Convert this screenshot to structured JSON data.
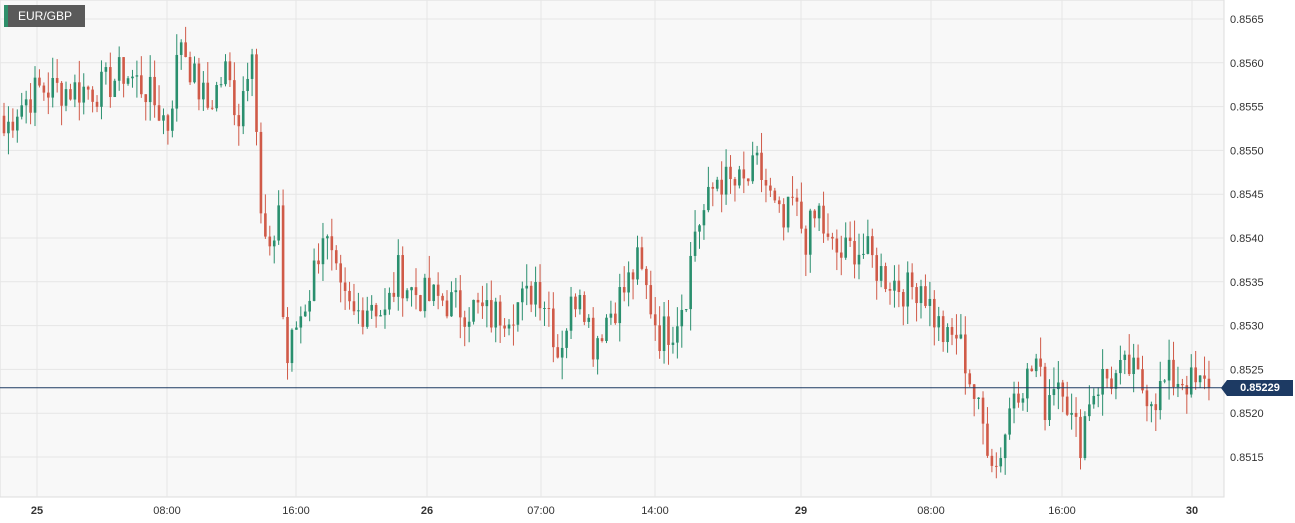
{
  "symbol": "EUR/GBP",
  "current_price": "0.85229",
  "colors": {
    "up": "#2a8f6e",
    "down": "#d05a48",
    "price_line": "#1d3a63",
    "grid": "#e6e6e6",
    "plot_bg": "#f8f8f8"
  },
  "chart_data": {
    "type": "candlestick",
    "title": "",
    "ylim": [
      0.851,
      0.8567
    ],
    "y_ticks": [
      "0.8565",
      "0.8560",
      "0.8555",
      "0.8550",
      "0.8545",
      "0.8540",
      "0.8535",
      "0.8530",
      "0.8525",
      "0.8520",
      "0.8515"
    ],
    "x_ticks": [
      {
        "label": "25",
        "bold": true
      },
      {
        "label": "08:00",
        "bold": false
      },
      {
        "label": "16:00",
        "bold": false
      },
      {
        "label": "26",
        "bold": true
      },
      {
        "label": "07:00",
        "bold": false
      },
      {
        "label": "14:00",
        "bold": false
      },
      {
        "label": "29",
        "bold": true
      },
      {
        "label": "08:00",
        "bold": false
      },
      {
        "label": "16:00",
        "bold": false
      },
      {
        "label": "30",
        "bold": true
      }
    ],
    "last_price": 0.85229,
    "close_path": [
      [
        0,
        0.8552
      ],
      [
        3,
        0.8555
      ],
      [
        8,
        0.8557
      ],
      [
        15,
        0.8557
      ],
      [
        22,
        0.8557
      ],
      [
        27,
        0.8559
      ],
      [
        32,
        0.8557
      ],
      [
        37,
        0.8553
      ],
      [
        40,
        0.8563
      ],
      [
        43,
        0.8558
      ],
      [
        46,
        0.8555
      ],
      [
        50,
        0.8559
      ],
      [
        53,
        0.8554
      ],
      [
        56,
        0.8563
      ],
      [
        58,
        0.8542
      ],
      [
        60,
        0.8537
      ],
      [
        62,
        0.8544
      ],
      [
        63,
        0.8531
      ],
      [
        64,
        0.8526
      ],
      [
        66,
        0.853
      ],
      [
        69,
        0.8534
      ],
      [
        72,
        0.8541
      ],
      [
        74,
        0.8537
      ],
      [
        76,
        0.8533
      ],
      [
        79,
        0.8531
      ],
      [
        83,
        0.8533
      ],
      [
        86,
        0.8531
      ],
      [
        89,
        0.8536
      ],
      [
        92,
        0.8534
      ],
      [
        96,
        0.8533
      ],
      [
        99,
        0.8533
      ],
      [
        103,
        0.8532
      ],
      [
        106,
        0.8532
      ],
      [
        110,
        0.8531
      ],
      [
        114,
        0.8532
      ],
      [
        118,
        0.8533
      ],
      [
        120,
        0.8535
      ],
      [
        123,
        0.8532
      ],
      [
        125,
        0.8527
      ],
      [
        128,
        0.8532
      ],
      [
        130,
        0.8535
      ],
      [
        133,
        0.8528
      ],
      [
        136,
        0.8531
      ],
      [
        140,
        0.8534
      ],
      [
        143,
        0.8537
      ],
      [
        145,
        0.8534
      ],
      [
        148,
        0.8529
      ],
      [
        151,
        0.853
      ],
      [
        154,
        0.8534
      ],
      [
        156,
        0.8541
      ],
      [
        159,
        0.8544
      ],
      [
        161,
        0.8547
      ],
      [
        164,
        0.8546
      ],
      [
        167,
        0.8546
      ],
      [
        170,
        0.8548
      ],
      [
        172,
        0.8546
      ],
      [
        174,
        0.8543
      ],
      [
        176,
        0.8541
      ],
      [
        178,
        0.8544
      ],
      [
        181,
        0.854
      ],
      [
        184,
        0.8543
      ],
      [
        186,
        0.8539
      ],
      [
        189,
        0.8538
      ],
      [
        192,
        0.8539
      ],
      [
        195,
        0.8538
      ],
      [
        198,
        0.8536
      ],
      [
        201,
        0.8535
      ],
      [
        204,
        0.8534
      ],
      [
        207,
        0.8535
      ],
      [
        210,
        0.8531
      ],
      [
        213,
        0.8528
      ],
      [
        215,
        0.8529
      ],
      [
        217,
        0.8526
      ],
      [
        220,
        0.852
      ],
      [
        222,
        0.8517
      ],
      [
        224,
        0.8514
      ],
      [
        226,
        0.8518
      ],
      [
        228,
        0.8523
      ],
      [
        231,
        0.8524
      ],
      [
        233,
        0.8526
      ],
      [
        235,
        0.8521
      ],
      [
        237,
        0.8524
      ],
      [
        239,
        0.8524
      ],
      [
        241,
        0.8519
      ],
      [
        243,
        0.8517
      ],
      [
        245,
        0.8522
      ],
      [
        248,
        0.8524
      ],
      [
        251,
        0.8524
      ],
      [
        254,
        0.8525
      ],
      [
        257,
        0.8523
      ],
      [
        260,
        0.8522
      ],
      [
        263,
        0.8524
      ],
      [
        266,
        0.8524
      ],
      [
        269,
        0.8523
      ],
      [
        272,
        0.8523
      ]
    ]
  }
}
